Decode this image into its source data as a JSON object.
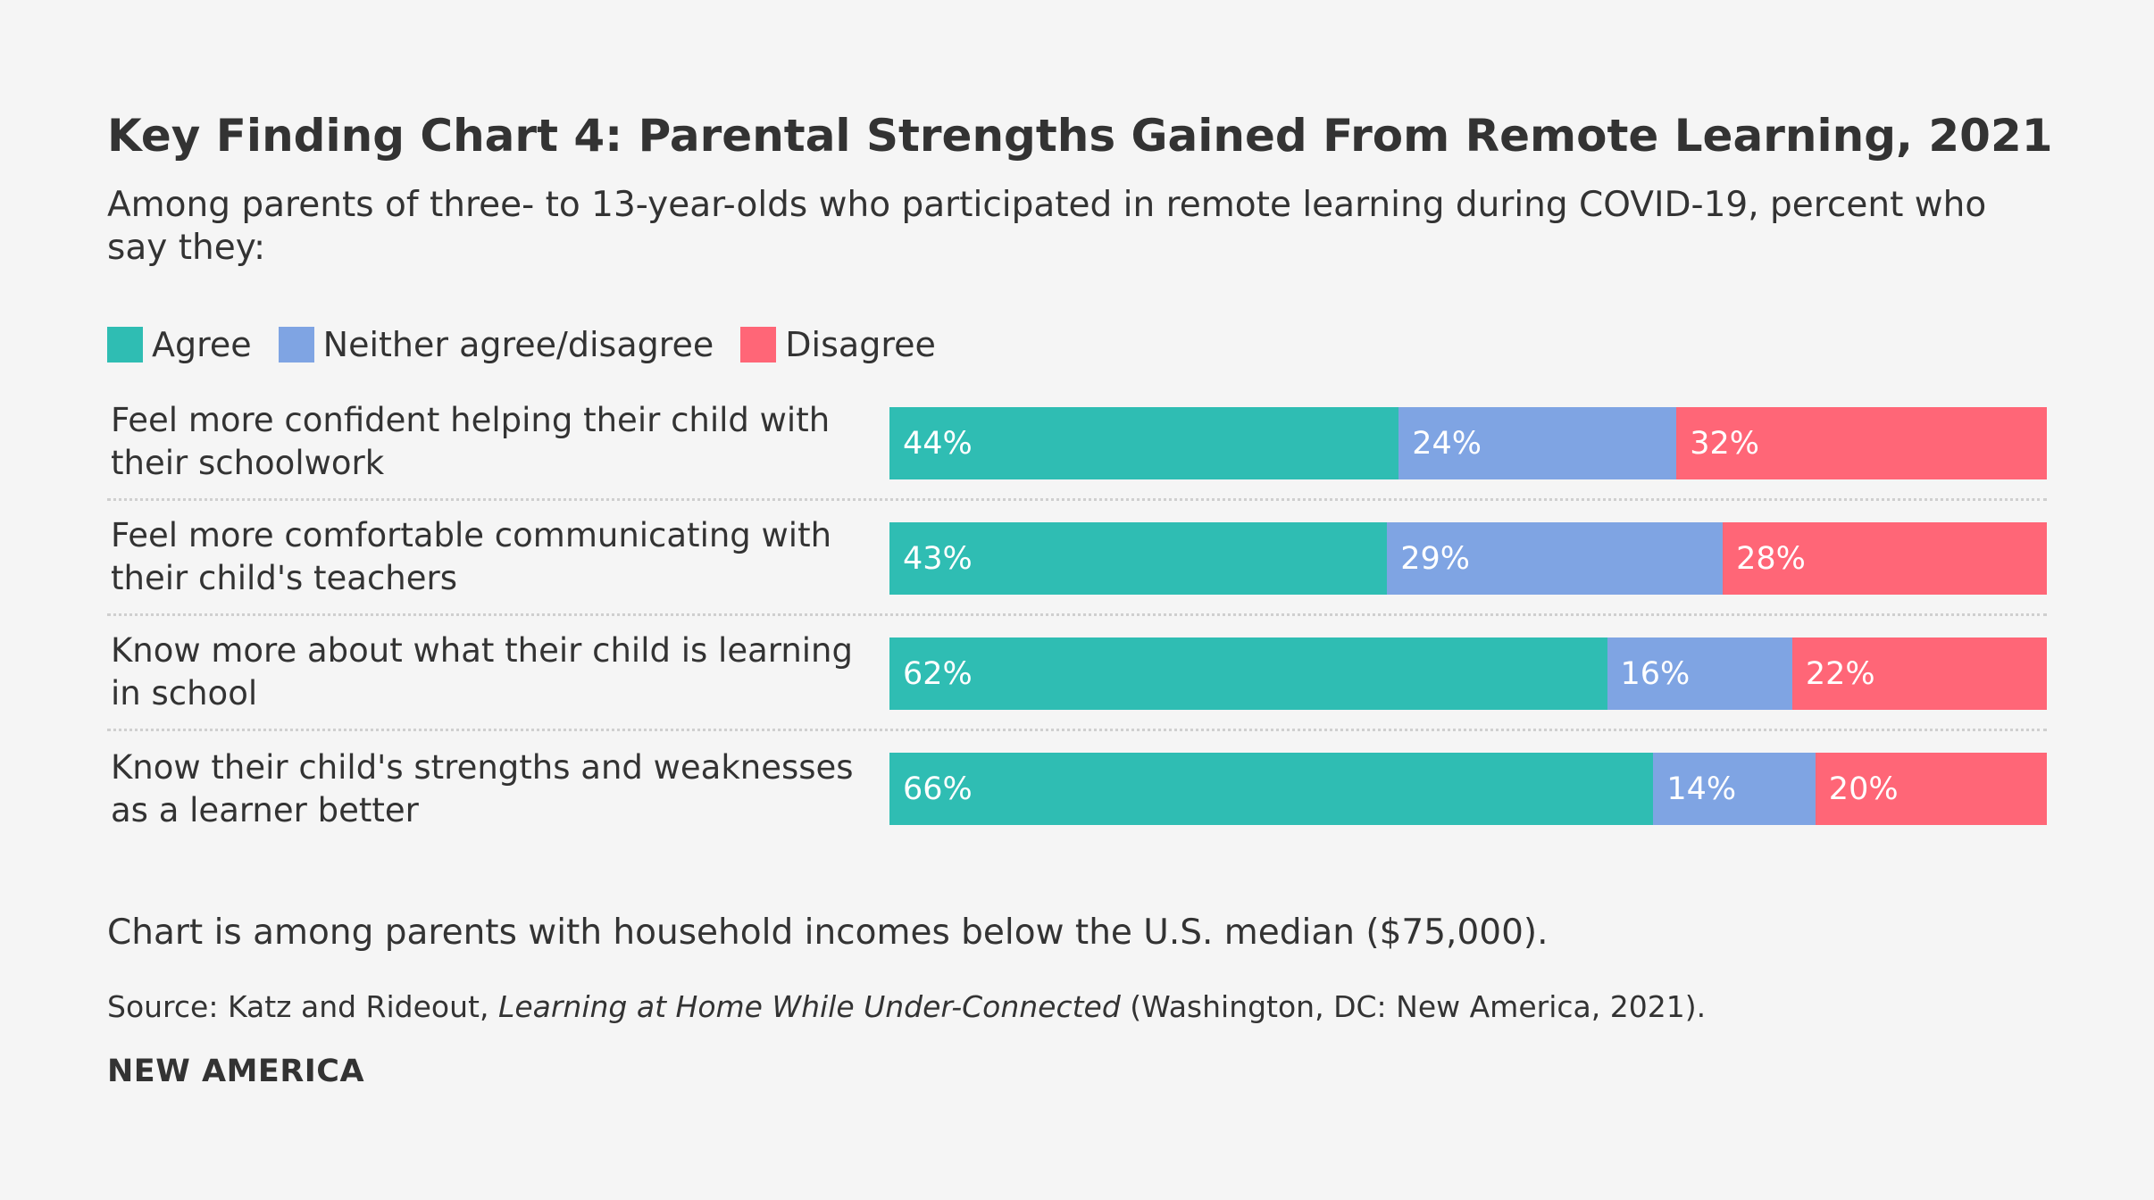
{
  "chart_data": {
    "type": "bar",
    "orientation": "horizontal",
    "stacked": true,
    "title": "Key Finding Chart 4: Parental Strengths Gained From Remote Learning, 2021",
    "subtitle": "Among parents of three- to 13-year-olds who participated in remote learning during COVID-19, percent who say they:",
    "categories": [
      "Feel more confident helping their child with their schoolwork",
      "Feel more comfortable communicating with their child's teachers",
      "Know more about what their child is learning in school",
      "Know their child's strengths and weaknesses as a learner better"
    ],
    "series": [
      {
        "name": "Agree",
        "key": "agree",
        "color": "#2fbdb3",
        "values": [
          44,
          43,
          62,
          66
        ]
      },
      {
        "name": "Neither agree/disagree",
        "key": "neither",
        "color": "#7fa4e3",
        "values": [
          24,
          29,
          16,
          14
        ]
      },
      {
        "name": "Disagree",
        "key": "disagree",
        "color": "#ff6677",
        "values": [
          32,
          28,
          22,
          20
        ]
      }
    ],
    "value_suffix": "%",
    "xlim": [
      0,
      100
    ],
    "legend_position": "top-left",
    "grid": false
  },
  "footer": {
    "note": "Chart is among parents with household incomes below the U.S. median ($75,000).",
    "source_prefix": "Source: Katz and Rideout, ",
    "source_title": "Learning at Home While Under-Connected",
    "source_suffix": " (Washington, DC: New America, 2021).",
    "brand": "NEW AMERICA"
  }
}
